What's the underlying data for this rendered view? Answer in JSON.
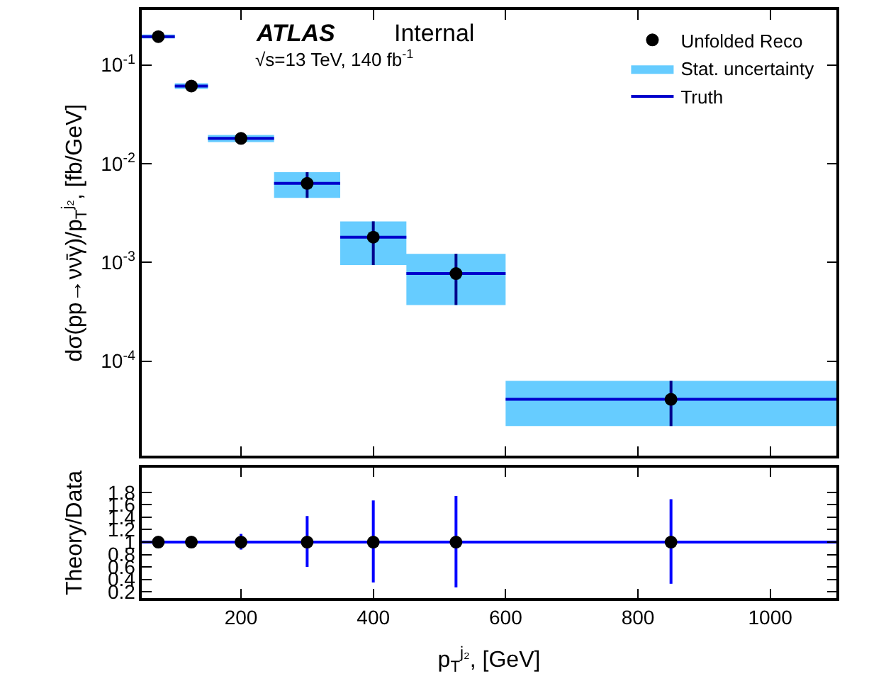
{
  "chart_data": [
    {
      "type": "scatter",
      "ylabel": "dσ(pp→νν̄γ)/p$_{T}$$^{j₂}$, [fb/GeV]",
      "annotations": [
        "ATLAS",
        "Internal",
        "√s=13 TeV, 140 fb$^{-1}$"
      ],
      "log": "y",
      "grid": false,
      "legend": "top right",
      "tick_labels": "y",
      "xlim": [
        50,
        1100
      ],
      "xticks": [
        200,
        400,
        600,
        800,
        1000
      ],
      "ylim": [
        1.1e-05,
        0.36
      ],
      "yticks": [
        {
          "value": 0.0001,
          "label": "10$^{-4}$"
        },
        {
          "value": 0.001,
          "label": "10$^{-3}$"
        },
        {
          "value": 0.01,
          "label": "10$^{-2}$"
        },
        {
          "value": 0.1,
          "label": "10$^{-1}$"
        }
      ],
      "series": [
        {
          "name": "Unfolded Reco",
          "marker": "circle",
          "color": "#000000",
          "x": [
            75,
            125,
            200,
            300,
            400,
            525,
            850
          ],
          "values": [
            0.193,
            0.061,
            0.018,
            0.0063,
            0.0018,
            0.00077,
            4.1e-05
          ],
          "errors": [
            null,
            null,
            null,
            [
              0.0045,
              0.0082
            ],
            [
              0.00094,
              0.0026
            ],
            [
              0.00037,
              0.00122
            ],
            [
              2.2e-05,
              6.3e-05
            ]
          ]
        },
        {
          "name": "Stat. uncertainty",
          "type": "step",
          "color": "#66ccff",
          "x": [
            50,
            100,
            150,
            250,
            350,
            450,
            600,
            1100
          ],
          "values": [
            null,
            null,
            null,
            null,
            null,
            null,
            null,
            null
          ],
          "lower": [
            0.185,
            0.057,
            0.0165,
            0.0045,
            0.00094,
            0.00037,
            2.2e-05,
            2.2e-05
          ],
          "upper": [
            0.203,
            0.065,
            0.0195,
            0.0082,
            0.0026,
            0.00122,
            6.3e-05,
            6.3e-05
          ]
        },
        {
          "name": "Truth",
          "type": "step",
          "color": "#0000cc",
          "x": [
            50,
            100,
            150,
            250,
            350,
            450,
            600,
            1100
          ],
          "values": [
            0.193,
            0.061,
            0.018,
            0.0063,
            0.0018,
            0.00077,
            4.1e-05,
            4.1e-05
          ]
        }
      ]
    },
    {
      "type": "scatter",
      "xlabel": "p$_{T}$$^{j₂}$, [GeV]",
      "ylabel": "Theory/Data",
      "grid": false,
      "xlim": [
        50,
        1100
      ],
      "xticks": [
        200,
        400,
        600,
        800,
        1000
      ],
      "ylim": [
        0.1,
        2.2
      ],
      "yticks": [
        0.2,
        0.4,
        0.6,
        0.8,
        1,
        1.2,
        1.4,
        1.6,
        1.8
      ],
      "ref_lines": [
        {
          "axis": "y",
          "value": 1,
          "color": "#0000ff"
        }
      ],
      "series": [
        {
          "marker": "circle",
          "color": "#000000",
          "x": [
            75,
            125,
            200,
            300,
            400,
            525,
            850
          ],
          "values": [
            1,
            1,
            1,
            1,
            1,
            1,
            1
          ],
          "errors": [
            null,
            null,
            [
              0.88,
              1.13
            ],
            [
              0.6,
              1.42
            ],
            [
              0.35,
              1.67
            ],
            [
              0.27,
              1.74
            ],
            [
              0.33,
              1.69
            ]
          ]
        }
      ]
    }
  ]
}
